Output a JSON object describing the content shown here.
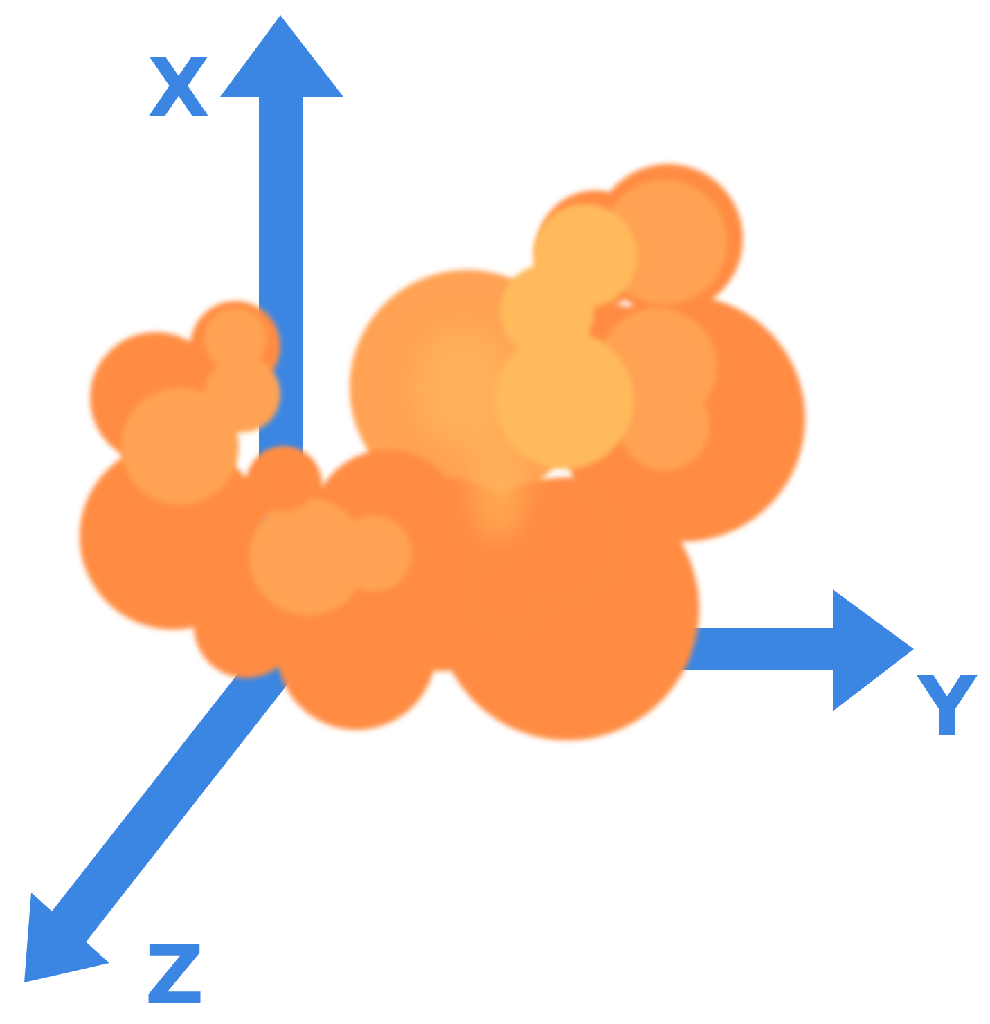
{
  "diagram": {
    "axes": [
      {
        "id": "x",
        "label": "X"
      },
      {
        "id": "y",
        "label": "Y"
      },
      {
        "id": "z",
        "label": "Z"
      }
    ],
    "object": "orange-cloud-blob",
    "colors": {
      "axis": "#3b86e2",
      "cloud_dark": "#ff8c42",
      "cloud_mid": "#ffa253",
      "cloud_light": "#ffba5c"
    }
  }
}
